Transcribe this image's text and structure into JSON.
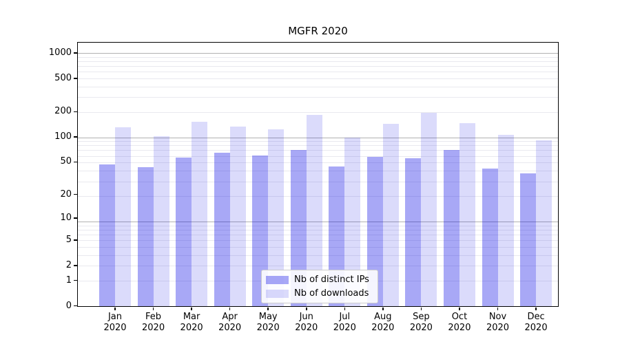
{
  "chart_data": {
    "type": "bar",
    "title": "MGFR 2020",
    "categories": [
      "Jan",
      "Feb",
      "Mar",
      "Apr",
      "May",
      "Jun",
      "Jul",
      "Aug",
      "Sep",
      "Oct",
      "Nov",
      "Dec"
    ],
    "year_label": "2020",
    "series": [
      {
        "name": "Nb of distinct IPs",
        "color": "rgba(0,0,230,0.34)",
        "values": [
          48,
          44,
          58,
          66,
          61,
          72,
          45,
          59,
          57,
          71,
          43,
          37
        ]
      },
      {
        "name": "Nb of downloads",
        "color": "rgba(0,0,230,0.14)",
        "values": [
          133,
          105,
          156,
          136,
          127,
          189,
          100,
          147,
          198,
          150,
          108,
          93
        ]
      }
    ],
    "yscale": "log1p",
    "yticks": [
      1000,
      500,
      200,
      100,
      50,
      20,
      10,
      5,
      2,
      1,
      0
    ],
    "ylim": [
      0,
      1330
    ],
    "grid": {
      "major_color": "#b0b0b0",
      "minor_color": "#e9e9ef"
    },
    "legend_position": "lower center",
    "bar_colors_note": {
      "distinct_ips_hex": "#a8a8f7",
      "downloads_hex": "#dbdbfb"
    }
  }
}
